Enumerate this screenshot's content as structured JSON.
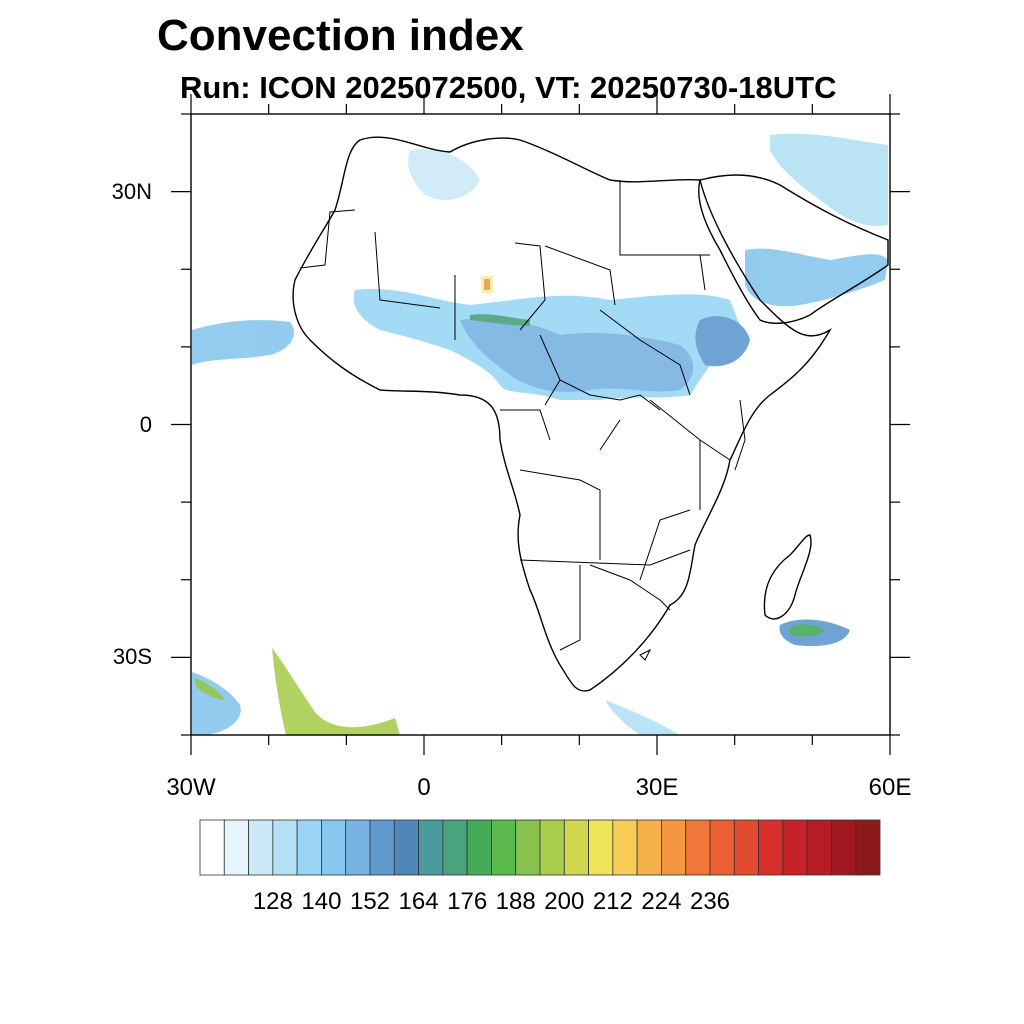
{
  "title": "Convection index",
  "subtitle": "Run: ICON 2025072500,  VT: 20250730-18UTC",
  "map": {
    "region": "Africa",
    "lat_range": [
      -40,
      40
    ],
    "lon_range": [
      -30,
      60
    ],
    "lat_labels": [
      {
        "lat": 30,
        "text": "30N"
      },
      {
        "lat": 0,
        "text": "0"
      },
      {
        "lat": -30,
        "text": "30S"
      }
    ],
    "lon_labels": [
      {
        "lon": -30,
        "text": "30W"
      },
      {
        "lon": 0,
        "text": "0"
      },
      {
        "lon": 30,
        "text": "30E"
      },
      {
        "lon": 60,
        "text": "60E"
      }
    ]
  },
  "colorbar": {
    "colors": [
      "#ffffff",
      "#e6f4fc",
      "#cde9f8",
      "#b4e0f6",
      "#9ad6f4",
      "#87c6ed",
      "#78b3e3",
      "#5f9acf",
      "#4f87bb",
      "#4a9aa0",
      "#4aa37d",
      "#45aa5a",
      "#5bb84d",
      "#86c24d",
      "#a7cd4f",
      "#cfd74f",
      "#f0e55a",
      "#f7cd55",
      "#f6b24a",
      "#f59741",
      "#f1783a",
      "#ec5e33",
      "#e24b30",
      "#d9302d",
      "#c72229",
      "#b51d26",
      "#a01920",
      "#8c1a1a"
    ],
    "labels": [
      "128",
      "140",
      "152",
      "164",
      "176",
      "188",
      "200",
      "212",
      "224",
      "236"
    ]
  }
}
